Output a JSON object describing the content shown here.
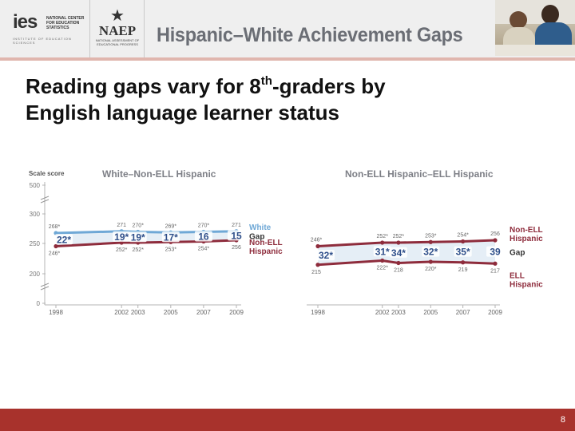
{
  "header": {
    "title": "Hispanic–White Achievement Gaps",
    "ies_logo_text": "ies",
    "ies_logo_tiny": "NATIONAL CENTER FOR EDUCATION STATISTICS",
    "ies_logo_line": "INSTITUTE OF EDUCATION SCIENCES",
    "naep_logo_text": "NAEP",
    "naep_logo_sub": "NATIONAL ASSESSMENT OF EDUCATIONAL PROGRESS"
  },
  "slide": {
    "title_line1_pre": "Reading gaps vary for 8",
    "title_line1_sup": "th",
    "title_line1_post": "-graders by",
    "title_line2": "English language learner status",
    "page_number": "8"
  },
  "colors": {
    "upper_line": "#6fa8d6",
    "lower_line": "#8e2c3c",
    "gap_fill": "#cfe0ef",
    "gap_label": "#2f4f8a",
    "footer": "#a8322c"
  },
  "chart_data": [
    {
      "type": "line",
      "title": "White–Non-ELL Hispanic",
      "ylabel": "Scale score",
      "yticks": [
        "0",
        "200",
        "250",
        "300",
        "500"
      ],
      "ylim": [
        200,
        300
      ],
      "axis_break": true,
      "x": [
        "1998",
        "2002",
        "2003",
        "2005",
        "2007",
        "2009"
      ],
      "series": [
        {
          "name": "White",
          "values": [
            268,
            271,
            270,
            269,
            270,
            271
          ],
          "labels": [
            "268*",
            "271",
            "270*",
            "269*",
            "270*",
            "271"
          ]
        },
        {
          "name": "Non-ELL Hispanic",
          "values": [
            246,
            252,
            252,
            253,
            254,
            256
          ],
          "labels": [
            "246*",
            "252*",
            "252*",
            "253*",
            "254*",
            "256"
          ]
        }
      ],
      "gap_label": "Gap",
      "gaps": [
        "22*",
        "19*",
        "19*",
        "17*",
        "16",
        "15"
      ]
    },
    {
      "type": "line",
      "title": "Non-ELL Hispanic–ELL Hispanic",
      "ylim": [
        200,
        300
      ],
      "x": [
        "1998",
        "2002",
        "2003",
        "2005",
        "2007",
        "2009"
      ],
      "series": [
        {
          "name": "Non-ELL Hispanic",
          "values": [
            246,
            252,
            252,
            253,
            254,
            256
          ],
          "labels": [
            "246*",
            "252*",
            "252*",
            "253*",
            "254*",
            "256"
          ]
        },
        {
          "name": "ELL Hispanic",
          "values": [
            215,
            222,
            218,
            220,
            219,
            217
          ],
          "labels": [
            "215",
            "222*",
            "218",
            "220*",
            "219",
            "217"
          ]
        }
      ],
      "gap_label": "Gap",
      "gaps": [
        "32*",
        "31*",
        "34*",
        "32*",
        "35*",
        "39"
      ]
    }
  ]
}
